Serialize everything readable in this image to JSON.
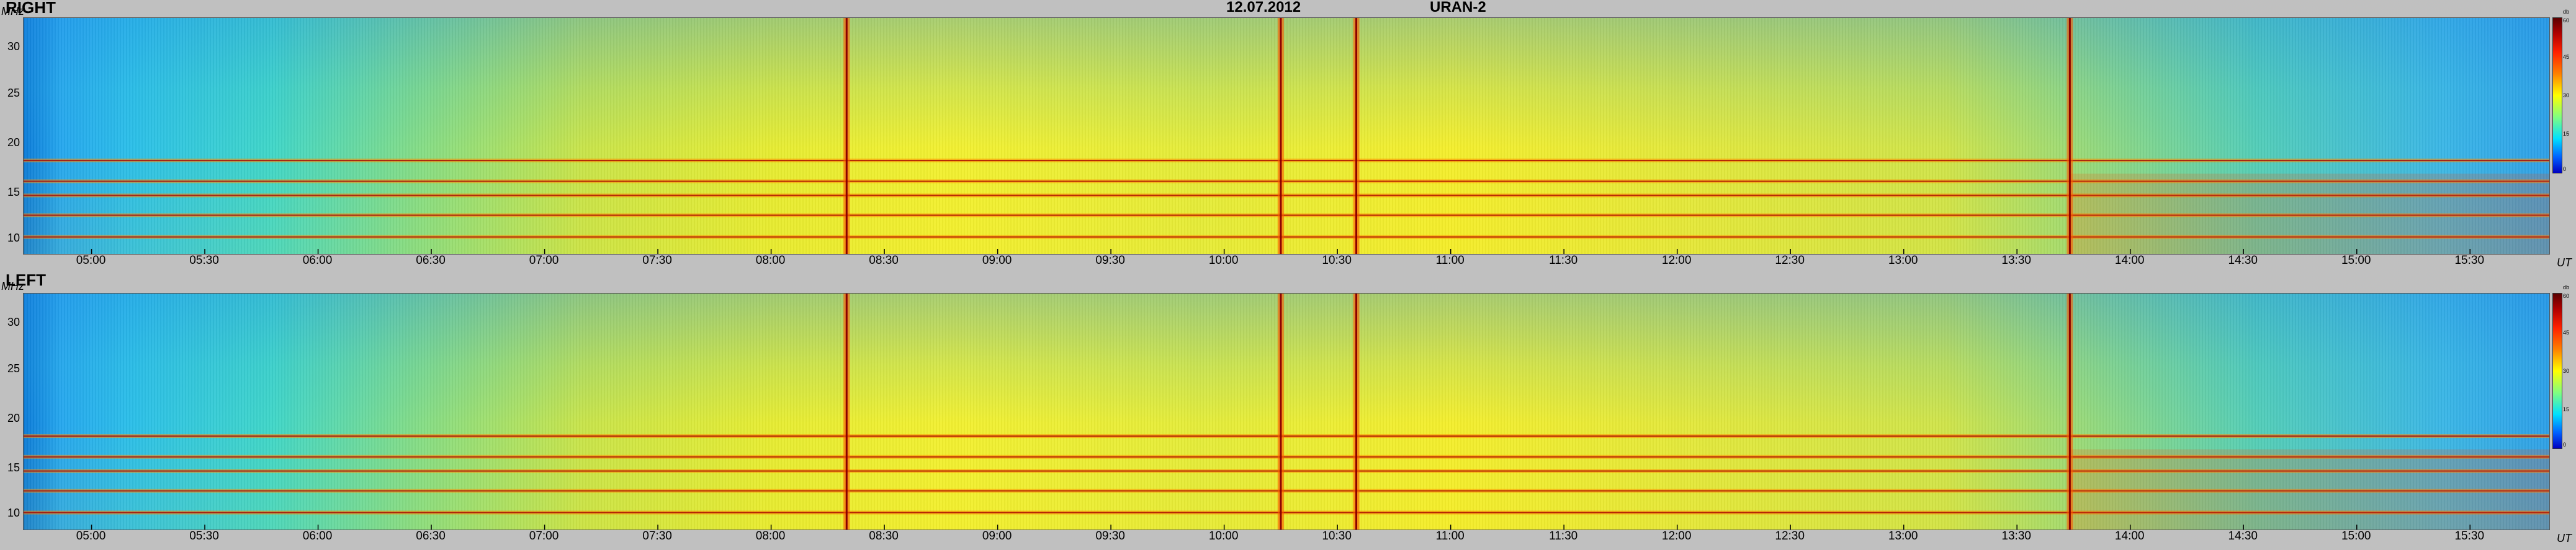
{
  "header": {
    "date": "12.07.2012",
    "instrument": "URAN-2"
  },
  "panels": [
    {
      "id": "right",
      "label": "RIGHT"
    },
    {
      "id": "left",
      "label": "LEFT"
    }
  ],
  "axis": {
    "y_unit": "MHz",
    "x_unit": "UT",
    "colorbar_unit": "db",
    "colorbar_ticks": [
      "60",
      "45",
      "30",
      "15",
      "0"
    ]
  },
  "chart_data": {
    "type": "heatmap",
    "title": "12.07.2012 URAN-2",
    "xlabel": "UT",
    "ylabel": "MHz",
    "x_ticks": [
      "05:00",
      "05:30",
      "06:00",
      "06:30",
      "07:00",
      "07:30",
      "08:00",
      "08:30",
      "09:00",
      "09:30",
      "10:00",
      "10:30",
      "11:00",
      "11:30",
      "12:00",
      "12:30",
      "13:00",
      "13:30",
      "14:00",
      "14:30",
      "15:00",
      "15:30"
    ],
    "x_range": [
      "04:42",
      "15:51"
    ],
    "y_ticks": [
      "30",
      "25",
      "20",
      "15",
      "10"
    ],
    "ylim": [
      8,
      33
    ],
    "colorbar": {
      "unit": "db",
      "range": [
        0,
        60
      ],
      "ticks": [
        60,
        45,
        30,
        15,
        0
      ]
    },
    "panels": [
      "RIGHT",
      "LEFT"
    ],
    "interference_bands_mhz": [
      9.8,
      12.1,
      14.2,
      15.7,
      17.9
    ],
    "burst_times_ut": [
      "08:20",
      "10:15",
      "10:35",
      "13:44"
    ]
  }
}
